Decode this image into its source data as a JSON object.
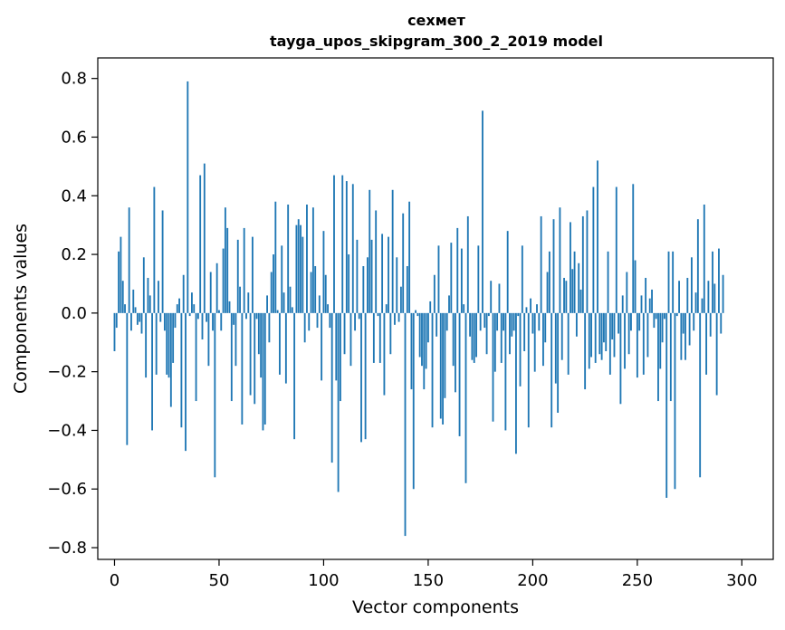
{
  "chart_data": {
    "type": "bar",
    "title": "сехмет",
    "subtitle": "tayga_upos_skipgram_300_2_2019 model",
    "xlabel": "Vector components",
    "ylabel": "Components values",
    "xlim": [
      -8,
      315
    ],
    "ylim": [
      -0.84,
      0.87
    ],
    "xticks": [
      0,
      50,
      100,
      150,
      200,
      250,
      300
    ],
    "yticks": [
      -0.8,
      -0.6,
      -0.4,
      -0.2,
      0.0,
      0.2,
      0.4,
      0.6,
      0.8
    ],
    "ytick_labels": [
      "−0.8",
      "−0.6",
      "−0.4",
      "−0.2",
      "0.0",
      "0.2",
      "0.4",
      "0.6",
      "0.8"
    ],
    "grid": false,
    "bar_color": "#1f77b4",
    "values": [
      -0.13,
      -0.05,
      0.21,
      0.26,
      0.11,
      0.03,
      -0.45,
      0.36,
      -0.06,
      0.08,
      0.02,
      -0.04,
      -0.03,
      -0.07,
      0.19,
      -0.22,
      0.12,
      0.06,
      -0.4,
      0.43,
      -0.21,
      0.11,
      -0.03,
      0.35,
      -0.06,
      -0.21,
      -0.22,
      -0.32,
      -0.17,
      -0.05,
      0.03,
      0.05,
      -0.39,
      0.13,
      -0.47,
      0.79,
      -0.01,
      0.07,
      0.03,
      -0.3,
      -0.02,
      0.47,
      -0.09,
      0.51,
      -0.03,
      -0.18,
      0.14,
      -0.06,
      -0.56,
      0.17,
      0.01,
      -0.06,
      0.22,
      0.36,
      0.29,
      0.04,
      -0.3,
      -0.04,
      -0.18,
      0.25,
      0.09,
      -0.38,
      0.29,
      -0.02,
      0.07,
      -0.28,
      0.26,
      -0.31,
      -0.02,
      -0.14,
      -0.22,
      -0.4,
      -0.38,
      0.06,
      -0.1,
      0.14,
      0.2,
      0.38,
      0.01,
      -0.21,
      0.23,
      0.07,
      -0.24,
      0.37,
      0.09,
      0.02,
      -0.43,
      0.3,
      0.32,
      0.3,
      0.26,
      -0.1,
      0.37,
      -0.06,
      0.14,
      0.36,
      0.16,
      -0.05,
      0.06,
      -0.23,
      0.28,
      0.13,
      0.03,
      -0.05,
      -0.51,
      0.47,
      -0.23,
      -0.61,
      -0.3,
      0.47,
      -0.14,
      0.45,
      0.2,
      -0.18,
      0.44,
      -0.06,
      0.25,
      -0.02,
      -0.44,
      0.16,
      -0.43,
      0.19,
      0.42,
      0.25,
      -0.17,
      0.35,
      -0.01,
      -0.17,
      0.27,
      -0.28,
      0.03,
      0.26,
      -0.14,
      0.42,
      -0.04,
      0.19,
      -0.03,
      0.09,
      0.34,
      -0.76,
      0.16,
      0.38,
      -0.26,
      -0.6,
      0.01,
      -0.01,
      -0.15,
      -0.18,
      -0.26,
      -0.19,
      -0.1,
      0.04,
      -0.39,
      0.13,
      -0.08,
      0.23,
      -0.36,
      -0.38,
      -0.29,
      -0.06,
      0.06,
      0.24,
      -0.18,
      -0.27,
      0.29,
      -0.42,
      0.22,
      0.03,
      -0.58,
      0.33,
      -0.08,
      -0.16,
      -0.17,
      -0.15,
      0.23,
      -0.06,
      0.69,
      -0.05,
      -0.14,
      -0.01,
      0.11,
      -0.37,
      -0.2,
      -0.06,
      0.1,
      -0.17,
      -0.06,
      -0.4,
      0.28,
      -0.14,
      -0.08,
      -0.06,
      -0.48,
      -0.01,
      -0.25,
      0.23,
      -0.13,
      0.02,
      -0.39,
      0.05,
      -0.07,
      -0.2,
      0.03,
      -0.06,
      0.33,
      -0.18,
      -0.1,
      0.14,
      0.21,
      -0.39,
      0.32,
      -0.24,
      -0.34,
      0.36,
      -0.16,
      0.12,
      0.11,
      -0.21,
      0.31,
      0.15,
      0.21,
      -0.08,
      0.17,
      0.08,
      0.33,
      -0.26,
      0.35,
      -0.19,
      -0.15,
      0.43,
      -0.17,
      0.52,
      -0.14,
      -0.16,
      -0.1,
      -0.13,
      0.21,
      -0.21,
      -0.09,
      -0.15,
      0.43,
      -0.07,
      -0.31,
      0.06,
      -0.19,
      0.14,
      -0.14,
      -0.06,
      0.44,
      0.18,
      -0.22,
      -0.06,
      0.06,
      -0.21,
      0.12,
      -0.15,
      0.05,
      0.08,
      -0.05,
      -0.02,
      -0.3,
      -0.19,
      -0.1,
      -0.02,
      -0.63,
      0.21,
      -0.3,
      0.21,
      -0.6,
      -0.01,
      0.11,
      -0.16,
      -0.07,
      -0.16,
      0.12,
      -0.11,
      0.19,
      -0.06,
      0.07,
      0.32,
      -0.56,
      0.05,
      0.37,
      -0.21,
      0.11,
      -0.08,
      0.21,
      0.1,
      -0.28,
      0.22,
      -0.07,
      0.13
    ]
  }
}
